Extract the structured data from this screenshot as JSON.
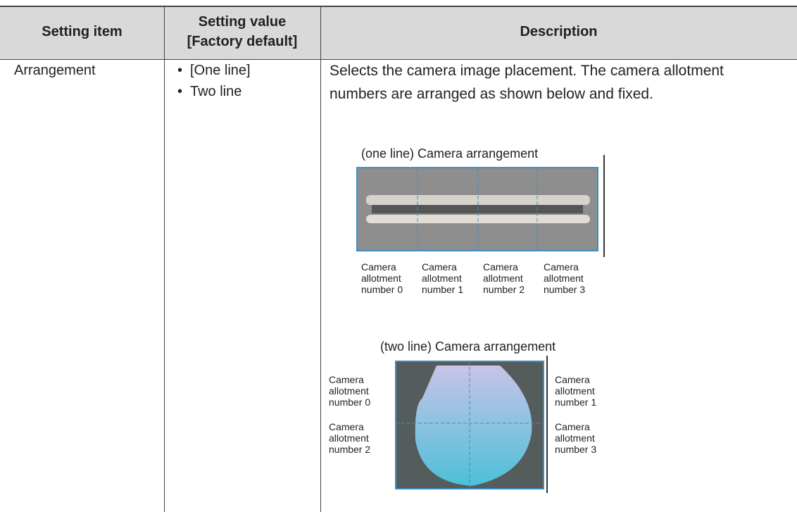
{
  "table": {
    "headers": [
      "Setting item",
      "Setting value",
      "[Factory default]",
      "Description"
    ],
    "rows": [
      {
        "item": "Arrangement",
        "values": [
          "[One line]",
          "Two line"
        ],
        "description": [
          "Selects the camera image placement. The camera allotment",
          "numbers are arranged as shown below and fixed."
        ],
        "figures": {
          "one_line": {
            "caption": "(one line) Camera arrangement",
            "labels": [
              [
                "Camera",
                "allotment",
                "number 0"
              ],
              [
                "Camera",
                "allotment",
                "number 1"
              ],
              [
                "Camera",
                "allotment",
                "number 2"
              ],
              [
                "Camera",
                "allotment",
                "number 3"
              ]
            ]
          },
          "two_line": {
            "caption": "(two line) Camera arrangement",
            "labels": [
              [
                "Camera",
                "allotment",
                "number 0"
              ],
              [
                "Camera",
                "allotment",
                "number 1"
              ],
              [
                "Camera",
                "allotment",
                "number 2"
              ],
              [
                "Camera",
                "allotment",
                "number 3"
              ]
            ]
          }
        }
      }
    ]
  }
}
